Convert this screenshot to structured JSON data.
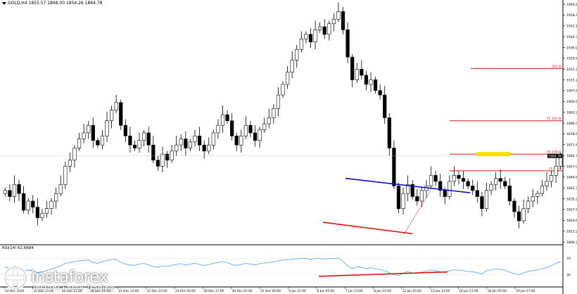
{
  "header": {
    "symbol": "GOLD,H4",
    "ohlc": "1855.57 1868.00 1854.26 1864.78"
  },
  "rsi_header": "RSI(14) 62.6684",
  "logo": {
    "name": "instaforex",
    "tagline": "Instant Forex Trading"
  },
  "colors": {
    "candle": "#000000",
    "trendline": "#0a0ad0",
    "fib": "#e01010",
    "highlight": "#ffe000",
    "rsi_line": "#4aa3ff",
    "divergence": "#e01010",
    "axis": "#000000"
  },
  "chart_data": [
    {
      "type": "candlestick",
      "symbol": "GOLD",
      "timeframe": "H4",
      "ylim": [
        1806.2,
        1965.8
      ],
      "y_ticks": [
        "1965.80",
        "1958.45",
        "1951.10",
        "1944.35",
        "1936.90",
        "1929.80",
        "1922.25",
        "1915.20",
        "1907.85",
        "1900.60",
        "1893.20",
        "1886.00",
        "1878.65",
        "1871.40",
        "1864.78",
        "1857.00",
        "1849.65",
        "1842.30",
        "1835.20",
        "1827.80",
        "1820.60",
        "1813.20",
        "1806.20"
      ],
      "current_price_label": "1864.78",
      "x_ticks": [
        "14 Dec 2020",
        "15 Dec 17:00",
        "16 Dec 21:00",
        "18 Dec 01:00",
        "21 Dec 13:00",
        "22 Dec 21:00",
        "24 Dec 05:00",
        "28 Dec 17:00",
        "30 Dec 01:00",
        "31 Dec 09:00",
        "6 Jan 21:00",
        "6 Jan 05:00",
        "7 Jan 13:00",
        "8 Jan 21:00",
        "12 Jan 05:00",
        "13 Jan 13:00",
        "14 Jan 21:00",
        "18 Jan 05:00",
        "19 Jan 17:00"
      ],
      "series": [
        {
          "close": [
            1842,
            1838,
            1846,
            1840,
            1829,
            1835,
            1831,
            1824,
            1827,
            1830,
            1835,
            1840,
            1846,
            1858,
            1862,
            1870,
            1876,
            1880,
            1885,
            1875,
            1872,
            1878,
            1888,
            1895,
            1900,
            1885,
            1878,
            1872,
            1870,
            1875,
            1880,
            1872,
            1862,
            1858,
            1866,
            1862,
            1868,
            1872,
            1876,
            1870,
            1874,
            1878,
            1872,
            1868,
            1872,
            1880,
            1885,
            1892,
            1888,
            1878,
            1872,
            1878,
            1885,
            1880,
            1875,
            1882,
            1886,
            1890,
            1896,
            1905,
            1912,
            1920,
            1928,
            1935,
            1942,
            1945,
            1940,
            1948,
            1950,
            1945,
            1952,
            1955,
            1960,
            1948,
            1930,
            1915,
            1922,
            1918,
            1912,
            1915,
            1908,
            1905,
            1890,
            1870,
            1845,
            1830,
            1840,
            1846,
            1838,
            1835,
            1842,
            1845,
            1852,
            1848,
            1842,
            1838,
            1848,
            1852,
            1850,
            1848,
            1845,
            1842,
            1838,
            1830,
            1842,
            1846,
            1850,
            1848,
            1845,
            1835,
            1828,
            1822,
            1830,
            1835,
            1838,
            1840,
            1845,
            1848,
            1852,
            1858,
            1865
          ]
        }
      ],
      "fib_levels": [
        {
          "label": "FE 61.8",
          "value": 1855.0
        },
        {
          "label": "FE 100.0",
          "value": 1866.0
        },
        {
          "label": "FE 161.8",
          "value": 1888.0
        },
        {
          "label": "261.8",
          "value": 1922.5
        }
      ],
      "annotations": [
        "blue descending trendline",
        "red support line",
        "yellow target highlight at FE 100.0"
      ]
    },
    {
      "type": "line",
      "indicator": "RSI(14)",
      "value": 62.6684,
      "ylim": [
        0,
        100
      ],
      "y_ticks": [
        "70",
        "30"
      ],
      "series": [
        {
          "name": "RSI(14)",
          "values": [
            48,
            46,
            52,
            47,
            38,
            42,
            40,
            35,
            37,
            40,
            44,
            48,
            52,
            58,
            60,
            62,
            64,
            65,
            66,
            60,
            58,
            62,
            65,
            67,
            68,
            60,
            56,
            54,
            53,
            56,
            58,
            54,
            50,
            48,
            52,
            50,
            53,
            55,
            57,
            54,
            56,
            58,
            55,
            53,
            55,
            58,
            60,
            62,
            60,
            55,
            53,
            55,
            58,
            56,
            54,
            57,
            59,
            60,
            62,
            64,
            66,
            67,
            68,
            69,
            70,
            70,
            68,
            70,
            70,
            68,
            70,
            70,
            71,
            62,
            52,
            45,
            50,
            48,
            45,
            47,
            44,
            43,
            40,
            35,
            30,
            28,
            34,
            38,
            34,
            33,
            37,
            39,
            42,
            40,
            37,
            35,
            40,
            42,
            41,
            40,
            38,
            37,
            35,
            32,
            40,
            42,
            44,
            43,
            41,
            36,
            33,
            30,
            35,
            38,
            40,
            42,
            45,
            48,
            52,
            58,
            62.7
          ]
        }
      ]
    }
  ]
}
